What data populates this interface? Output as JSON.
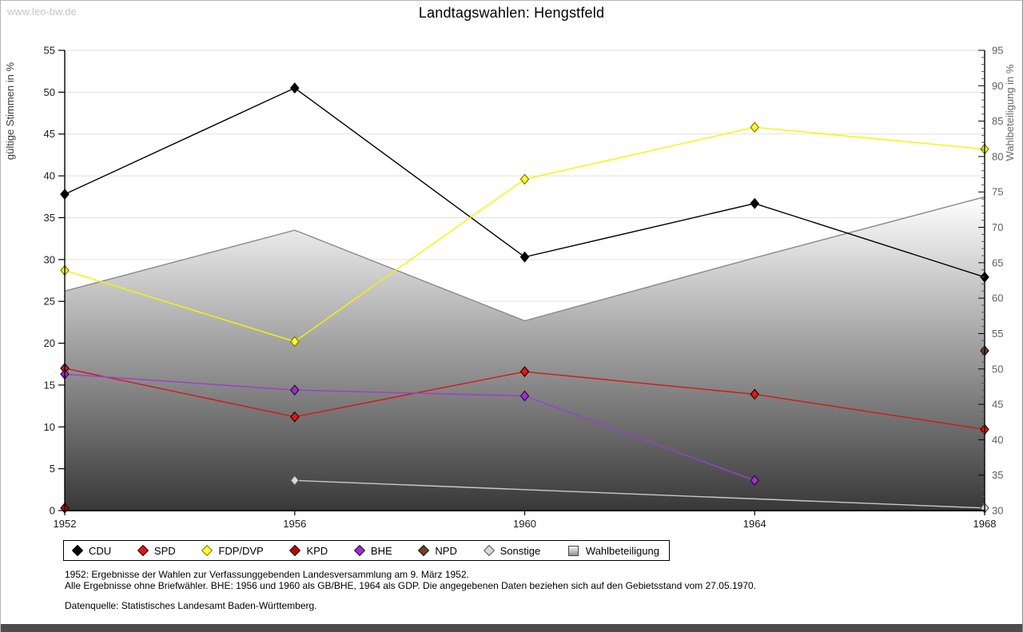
{
  "watermark": "www.leo-bw.de",
  "title": "Landtagswahlen: Hengstfeld",
  "chart_data": {
    "type": "line",
    "title": "Landtagswahlen: Hengstfeld",
    "x": [
      1952,
      1956,
      1960,
      1964,
      1968
    ],
    "y_left": {
      "label": "gültige Stimmen in %",
      "min": 0,
      "max": 55,
      "tick_step": 5
    },
    "y_right": {
      "label": "Wahlbeteiligung in %",
      "min": 30,
      "max": 95,
      "tick_step": 5,
      "minor_step": 1
    },
    "grid": "horizontal-left-majors",
    "legend_position": "bottom",
    "area_gradient": [
      "#ffffff",
      "#383838"
    ],
    "area_edge_color": "#8a8a8a",
    "series": [
      {
        "name": "CDU",
        "axis": "left",
        "color": "#000000",
        "marker": "#000000",
        "edge": "#000000",
        "values": [
          37.8,
          50.5,
          30.3,
          36.7,
          27.9
        ]
      },
      {
        "name": "SPD",
        "axis": "left",
        "color": "#d41616",
        "marker": "#e01818",
        "edge": "#2a0000",
        "values": [
          17.0,
          11.2,
          16.6,
          13.9,
          9.7
        ]
      },
      {
        "name": "FDP/DVP",
        "axis": "left",
        "color": "#f6f600",
        "marker": "#ffff2e",
        "edge": "#7c7c00",
        "values": [
          28.7,
          20.2,
          39.6,
          45.8,
          43.2
        ]
      },
      {
        "name": "KPD",
        "axis": "left",
        "color": "#a40000",
        "marker": "#b40808",
        "edge": "#2a0000",
        "values": [
          0.3,
          null,
          null,
          null,
          null
        ]
      },
      {
        "name": "BHE",
        "axis": "left",
        "color": "#9a40cc",
        "marker": "#9932cc",
        "edge": "#2c0a3c",
        "values": [
          16.3,
          14.4,
          13.7,
          3.6,
          null
        ]
      },
      {
        "name": "NPD",
        "axis": "left",
        "color": "#64401e",
        "marker": "#6b4423",
        "edge": "#201006",
        "values": [
          null,
          null,
          null,
          null,
          19.1
        ]
      },
      {
        "name": "Sonstige",
        "axis": "left",
        "color": "#c9c9c9",
        "marker": "#d9d9d9",
        "edge": "#5a5a5a",
        "values": [
          null,
          3.6,
          null,
          null,
          0.3
        ]
      },
      {
        "name": "Wahlbeteiligung",
        "axis": "right",
        "type": "area",
        "color": "#8a8a8a",
        "values": [
          61.0,
          69.6,
          56.8,
          65.7,
          74.3
        ]
      }
    ]
  },
  "footnotes": [
    "1952: Ergebnisse der Wahlen zur Verfassunggebenden Landesversammlung am 9. März 1952.",
    "Alle Ergebnisse ohne Briefwähler. BHE: 1956 und 1960 als GB/BHE, 1964 als GDP. Die angegebenen Daten beziehen sich auf den Gebietsstand vom 27.05.1970.",
    "Datenquelle: Statistisches Landesamt Baden-Württemberg."
  ]
}
